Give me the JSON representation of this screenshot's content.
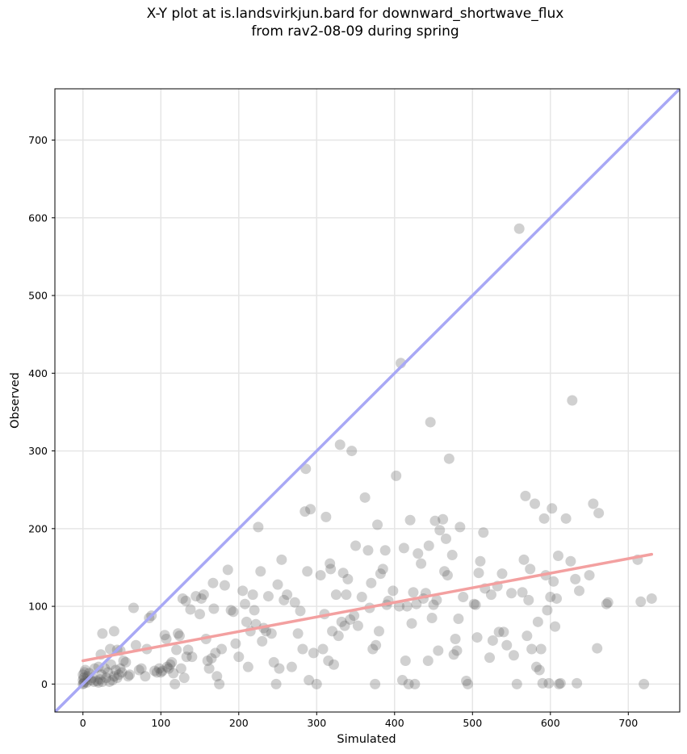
{
  "chart_data": {
    "type": "scatter",
    "title_line1": "X-Y plot at is.landsvirkjun.bard for downward_shortwave_flux",
    "title_line2": "from rav2-08-09 during spring",
    "xlabel": "Simulated",
    "ylabel": "Observed",
    "xlim": [
      -36,
      766
    ],
    "ylim": [
      -36,
      766
    ],
    "xticks": [
      0,
      100,
      200,
      300,
      400,
      500,
      600,
      700
    ],
    "yticks": [
      0,
      100,
      200,
      300,
      400,
      500,
      600,
      700
    ],
    "grid": true,
    "colors": {
      "points": "#555555",
      "identity_line": "#a8a8f5",
      "fit_line": "#f3a0a0"
    },
    "identity_line": {
      "from": [
        -36,
        -36
      ],
      "to": [
        766,
        766
      ]
    },
    "fit_line": {
      "from": [
        0,
        30
      ],
      "to": [
        730,
        167
      ]
    },
    "points": [
      [
        0,
        0
      ],
      [
        1,
        1
      ],
      [
        2,
        3
      ],
      [
        0,
        5
      ],
      [
        1,
        8
      ],
      [
        0,
        12
      ],
      [
        2,
        15
      ],
      [
        3,
        18
      ],
      [
        5,
        2
      ],
      [
        6,
        10
      ],
      [
        8,
        14
      ],
      [
        10,
        5
      ],
      [
        12,
        8
      ],
      [
        14,
        3
      ],
      [
        15,
        20
      ],
      [
        18,
        4
      ],
      [
        20,
        2
      ],
      [
        22,
        6
      ],
      [
        24,
        12
      ],
      [
        25,
        3
      ],
      [
        28,
        20
      ],
      [
        30,
        8
      ],
      [
        32,
        15
      ],
      [
        34,
        3
      ],
      [
        36,
        25
      ],
      [
        38,
        5
      ],
      [
        40,
        10
      ],
      [
        42,
        18
      ],
      [
        44,
        8
      ],
      [
        46,
        12
      ],
      [
        48,
        20
      ],
      [
        50,
        15
      ],
      [
        20,
        22
      ],
      [
        23,
        38
      ],
      [
        25,
        65
      ],
      [
        35,
        45
      ],
      [
        40,
        68
      ],
      [
        44,
        44
      ],
      [
        48,
        43
      ],
      [
        52,
        30
      ],
      [
        55,
        28
      ],
      [
        58,
        10
      ],
      [
        60,
        12
      ],
      [
        65,
        98
      ],
      [
        68,
        50
      ],
      [
        72,
        18
      ],
      [
        75,
        20
      ],
      [
        80,
        10
      ],
      [
        82,
        45
      ],
      [
        85,
        85
      ],
      [
        88,
        88
      ],
      [
        92,
        17
      ],
      [
        95,
        15
      ],
      [
        98,
        20
      ],
      [
        100,
        15
      ],
      [
        102,
        17
      ],
      [
        105,
        63
      ],
      [
        107,
        58
      ],
      [
        108,
        22
      ],
      [
        110,
        20
      ],
      [
        112,
        25
      ],
      [
        114,
        28
      ],
      [
        116,
        14
      ],
      [
        118,
        0
      ],
      [
        120,
        44
      ],
      [
        122,
        65
      ],
      [
        124,
        62
      ],
      [
        126,
        20
      ],
      [
        128,
        110
      ],
      [
        130,
        8
      ],
      [
        132,
        107
      ],
      [
        133,
        35
      ],
      [
        135,
        44
      ],
      [
        138,
        96
      ],
      [
        140,
        35
      ],
      [
        145,
        113
      ],
      [
        150,
        90
      ],
      [
        152,
        110
      ],
      [
        155,
        115
      ],
      [
        158,
        58
      ],
      [
        160,
        30
      ],
      [
        162,
        20
      ],
      [
        165,
        33
      ],
      [
        167,
        130
      ],
      [
        168,
        97
      ],
      [
        170,
        40
      ],
      [
        172,
        10
      ],
      [
        175,
        0
      ],
      [
        178,
        45
      ],
      [
        182,
        127
      ],
      [
        186,
        147
      ],
      [
        190,
        95
      ],
      [
        193,
        93
      ],
      [
        196,
        52
      ],
      [
        200,
        35
      ],
      [
        205,
        120
      ],
      [
        208,
        103
      ],
      [
        210,
        80
      ],
      [
        212,
        22
      ],
      [
        215,
        68
      ],
      [
        218,
        115
      ],
      [
        220,
        95
      ],
      [
        222,
        77
      ],
      [
        225,
        202
      ],
      [
        228,
        145
      ],
      [
        230,
        55
      ],
      [
        232,
        72
      ],
      [
        235,
        68
      ],
      [
        238,
        113
      ],
      [
        242,
        65
      ],
      [
        245,
        28
      ],
      [
        248,
        0
      ],
      [
        250,
        128
      ],
      [
        252,
        20
      ],
      [
        255,
        160
      ],
      [
        258,
        108
      ],
      [
        262,
        115
      ],
      [
        268,
        22
      ],
      [
        272,
        105
      ],
      [
        276,
        65
      ],
      [
        279,
        94
      ],
      [
        282,
        45
      ],
      [
        285,
        222
      ],
      [
        286,
        277
      ],
      [
        288,
        145
      ],
      [
        290,
        5
      ],
      [
        292,
        225
      ],
      [
        296,
        40
      ],
      [
        300,
        0
      ],
      [
        305,
        140
      ],
      [
        308,
        45
      ],
      [
        310,
        90
      ],
      [
        312,
        215
      ],
      [
        315,
        30
      ],
      [
        317,
        155
      ],
      [
        318,
        148
      ],
      [
        320,
        68
      ],
      [
        322,
        25
      ],
      [
        325,
        115
      ],
      [
        328,
        62
      ],
      [
        330,
        308
      ],
      [
        332,
        80
      ],
      [
        334,
        143
      ],
      [
        336,
        75
      ],
      [
        338,
        115
      ],
      [
        340,
        135
      ],
      [
        343,
        83
      ],
      [
        345,
        300
      ],
      [
        348,
        88
      ],
      [
        350,
        178
      ],
      [
        353,
        75
      ],
      [
        358,
        112
      ],
      [
        362,
        240
      ],
      [
        366,
        172
      ],
      [
        368,
        98
      ],
      [
        370,
        130
      ],
      [
        372,
        45
      ],
      [
        375,
        0
      ],
      [
        376,
        50
      ],
      [
        378,
        205
      ],
      [
        380,
        68
      ],
      [
        382,
        142
      ],
      [
        385,
        148
      ],
      [
        388,
        172
      ],
      [
        390,
        102
      ],
      [
        392,
        107
      ],
      [
        398,
        120
      ],
      [
        402,
        268
      ],
      [
        406,
        100
      ],
      [
        408,
        413
      ],
      [
        410,
        5
      ],
      [
        412,
        175
      ],
      [
        414,
        30
      ],
      [
        416,
        100
      ],
      [
        418,
        0
      ],
      [
        420,
        211
      ],
      [
        422,
        78
      ],
      [
        424,
        118
      ],
      [
        426,
        0
      ],
      [
        428,
        103
      ],
      [
        430,
        168
      ],
      [
        434,
        155
      ],
      [
        437,
        110
      ],
      [
        440,
        117
      ],
      [
        443,
        30
      ],
      [
        444,
        178
      ],
      [
        446,
        337
      ],
      [
        448,
        85
      ],
      [
        450,
        102
      ],
      [
        452,
        210
      ],
      [
        454,
        108
      ],
      [
        456,
        43
      ],
      [
        458,
        198
      ],
      [
        462,
        212
      ],
      [
        464,
        145
      ],
      [
        466,
        187
      ],
      [
        468,
        140
      ],
      [
        470,
        290
      ],
      [
        474,
        166
      ],
      [
        476,
        38
      ],
      [
        478,
        58
      ],
      [
        480,
        43
      ],
      [
        482,
        84
      ],
      [
        484,
        202
      ],
      [
        488,
        112
      ],
      [
        492,
        4
      ],
      [
        494,
        0
      ],
      [
        502,
        103
      ],
      [
        504,
        102
      ],
      [
        506,
        60
      ],
      [
        508,
        143
      ],
      [
        510,
        158
      ],
      [
        514,
        195
      ],
      [
        516,
        123
      ],
      [
        522,
        34
      ],
      [
        524,
        115
      ],
      [
        526,
        56
      ],
      [
        532,
        126
      ],
      [
        534,
        67
      ],
      [
        538,
        142
      ],
      [
        540,
        67
      ],
      [
        544,
        50
      ],
      [
        550,
        117
      ],
      [
        553,
        37
      ],
      [
        557,
        0
      ],
      [
        560,
        586
      ],
      [
        564,
        118
      ],
      [
        566,
        160
      ],
      [
        568,
        242
      ],
      [
        570,
        62
      ],
      [
        572,
        108
      ],
      [
        574,
        148
      ],
      [
        576,
        45
      ],
      [
        580,
        232
      ],
      [
        582,
        22
      ],
      [
        584,
        80
      ],
      [
        586,
        18
      ],
      [
        588,
        45
      ],
      [
        590,
        1
      ],
      [
        592,
        213
      ],
      [
        594,
        140
      ],
      [
        596,
        95
      ],
      [
        598,
        1
      ],
      [
        600,
        112
      ],
      [
        602,
        226
      ],
      [
        604,
        132
      ],
      [
        606,
        74
      ],
      [
        608,
        110
      ],
      [
        610,
        165
      ],
      [
        611,
        0
      ],
      [
        613,
        1
      ],
      [
        620,
        213
      ],
      [
        626,
        158
      ],
      [
        628,
        365
      ],
      [
        632,
        135
      ],
      [
        634,
        1
      ],
      [
        637,
        120
      ],
      [
        650,
        140
      ],
      [
        655,
        232
      ],
      [
        660,
        46
      ],
      [
        662,
        220
      ],
      [
        672,
        103
      ],
      [
        674,
        105
      ],
      [
        712,
        160
      ],
      [
        716,
        106
      ],
      [
        720,
        0
      ],
      [
        730,
        110
      ]
    ]
  }
}
